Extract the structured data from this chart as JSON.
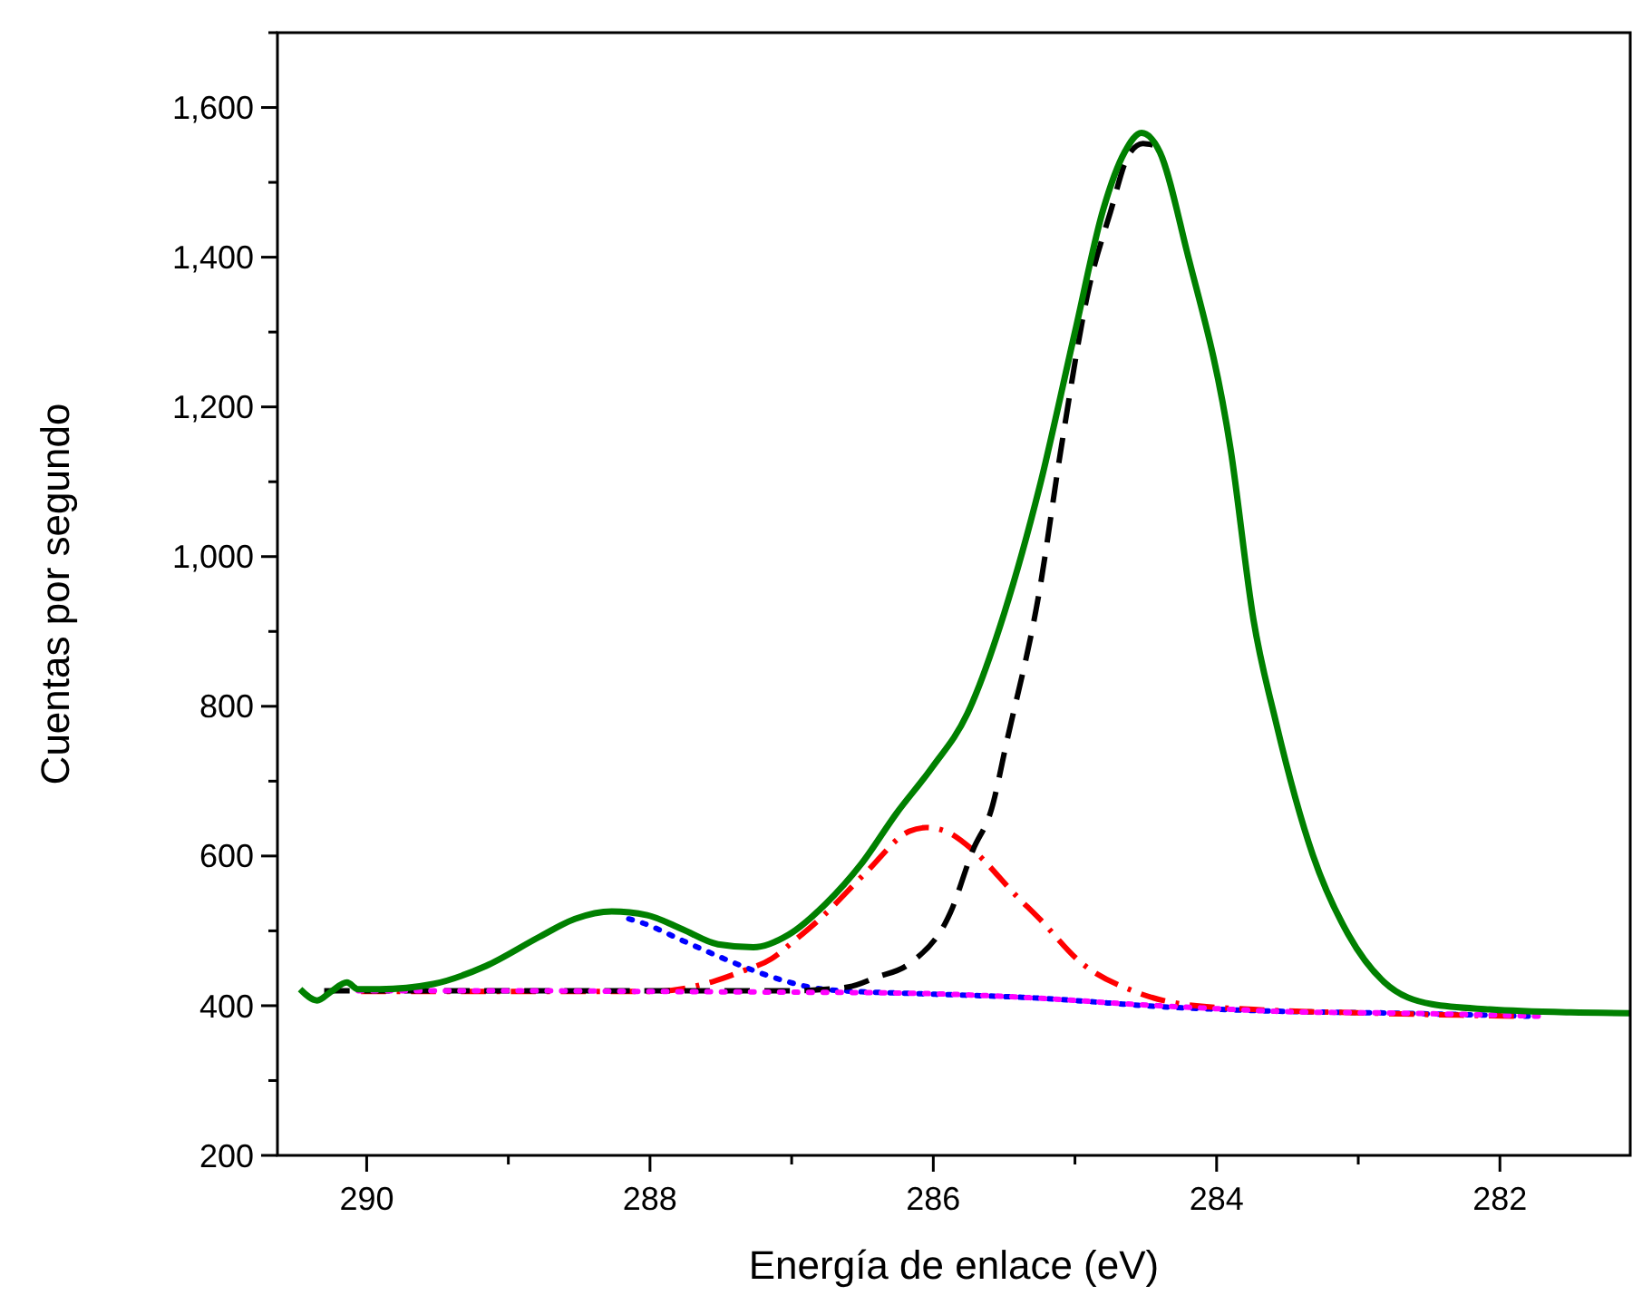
{
  "chart_data": {
    "type": "line",
    "xlabel": "Energía de enlace (eV)",
    "ylabel": "Cuentas por segundo",
    "xlim": [
      290.63,
      281.08
    ],
    "ylim": [
      200,
      1700
    ],
    "xticks": [
      290,
      {
        "value": 289,
        "label": null
      },
      288,
      {
        "value": 287,
        "label": null
      },
      286,
      {
        "value": 285,
        "label": null
      },
      284,
      {
        "value": 283,
        "label": null
      },
      282
    ],
    "yticks": [
      200,
      {
        "value": 300,
        "label": null
      },
      400,
      {
        "value": 500,
        "label": null
      },
      600,
      {
        "value": 700,
        "label": null
      },
      800,
      {
        "value": 900,
        "label": null
      },
      {
        "value": 1000,
        "label": "1,000"
      },
      {
        "value": 1100,
        "label": null
      },
      {
        "value": 1200,
        "label": "1,200"
      },
      {
        "value": 1300,
        "label": null
      },
      {
        "value": 1400,
        "label": "1,400"
      },
      {
        "value": 1500,
        "label": null
      },
      {
        "value": 1600,
        "label": "1,600"
      },
      {
        "value": 1700,
        "label": null
      }
    ],
    "grid": false,
    "marker": "none",
    "series": [
      {
        "color": "#0000ff",
        "line_style": "dotted",
        "x": [
          288.15,
          288.06,
          287.77,
          287.48,
          287.18,
          286.85,
          286.55,
          286.26,
          285.25,
          284.33,
          283.65,
          282.73,
          281.8
        ],
        "values": [
          516,
          511,
          487,
          463,
          441,
          424,
          419,
          417,
          410,
          398,
          393,
          390,
          386
        ]
      },
      {
        "color": "#ff0000",
        "line_style": "dashdot",
        "x": [
          290.04,
          289,
          287.98,
          287.56,
          287.35,
          287.14,
          286.98,
          286.8,
          286.47,
          286.17,
          286.05,
          285.9,
          285.72,
          285.42,
          285.25,
          284.96,
          284.58,
          284.24,
          283.74,
          282.9,
          281.9
        ],
        "values": [
          419,
          419,
          419,
          432,
          446,
          463,
          487,
          516,
          579,
          633,
          638,
          632,
          608,
          548,
          516,
          458,
          419,
          402,
          395,
          390,
          386
        ]
      },
      {
        "color": "#000000",
        "line_style": "dashed",
        "x": [
          290.3,
          289,
          288,
          287,
          286.6,
          286.4,
          286.17,
          285.88,
          285.72,
          285.59,
          285.48,
          285.25,
          285.1,
          284.9,
          284.75,
          284.62,
          284.52,
          284.45
        ],
        "values": [
          420,
          420,
          420,
          420,
          425,
          438,
          456,
          524,
          608,
          662,
          754,
          955,
          1142,
          1360,
          1460,
          1537,
          1552,
          1550
        ]
      },
      {
        "color": "#ff00ff",
        "line_style": "dotted",
        "x": [
          290.06,
          289,
          288,
          287,
          286.26,
          285.25,
          284.6,
          284,
          283.5,
          282.7,
          281.73
        ],
        "values": [
          420,
          420,
          419,
          418,
          417,
          410,
          402,
          396,
          392,
          390,
          386
        ]
      },
      {
        "color": "#008000",
        "line_style": "solid",
        "x": [
          290.47,
          290.35,
          290.25,
          290.14,
          290.06,
          289.91,
          289.53,
          289.16,
          288.78,
          288.53,
          288.27,
          288.02,
          287.77,
          287.52,
          287.27,
          287.02,
          286.76,
          286.51,
          286.26,
          286.01,
          285.76,
          285.5,
          285.25,
          285,
          284.8,
          284.65,
          284.53,
          284.4,
          284.21,
          283.9,
          283.74,
          283.58,
          283.32,
          283.07,
          282.82,
          282.48,
          282.07,
          281.5,
          281.08
        ],
        "values": [
          422,
          407,
          419,
          431,
          422,
          422,
          429,
          453,
          492,
          516,
          526,
          521,
          502,
          482,
          478,
          495,
          536,
          589,
          657,
          718,
          790,
          924,
          1093,
          1300,
          1464,
          1540,
          1566,
          1540,
          1408,
          1142,
          916,
          778,
          601,
          495,
          432,
          402,
          395,
          391,
          390
        ]
      }
    ]
  }
}
